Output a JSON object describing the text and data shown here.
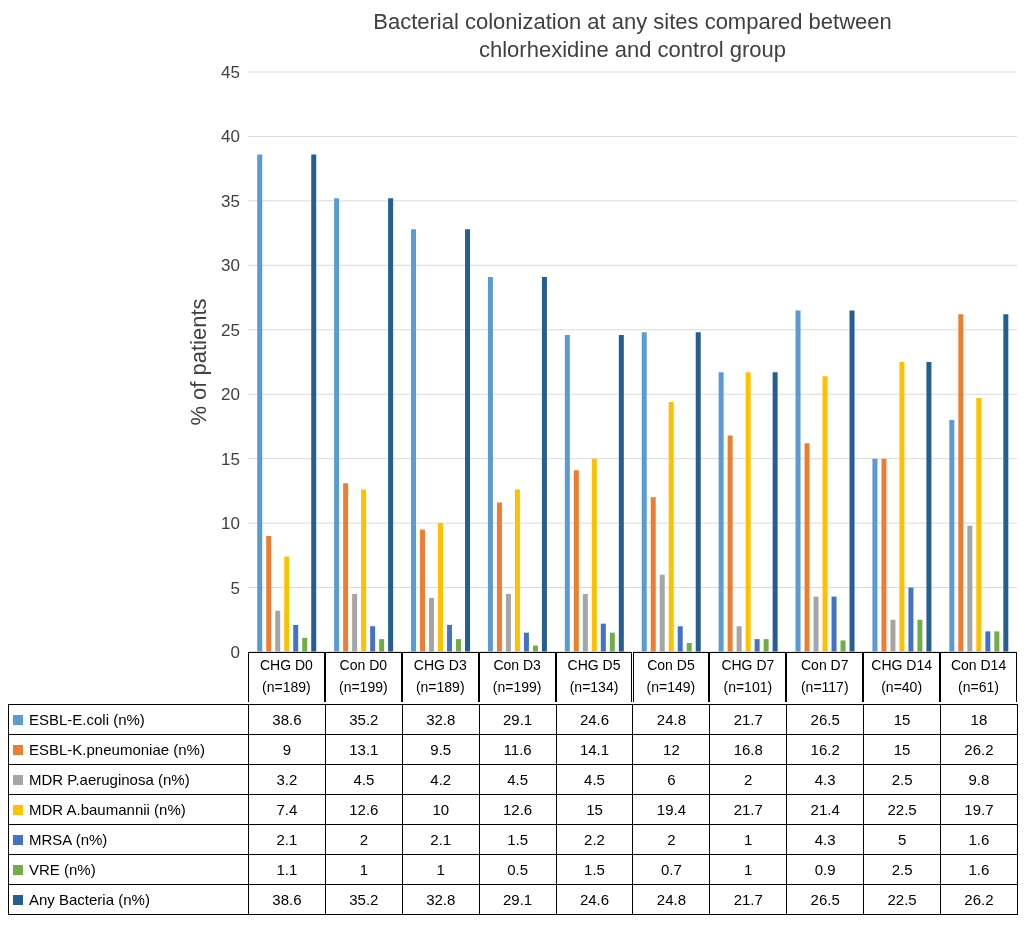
{
  "chart_data": {
    "type": "bar",
    "title": "Bacterial colonization at any sites compared between chlorhexidine and control group",
    "ylabel": "% of patients",
    "categories": [
      "CHG D0 (n=189)",
      "Con D0 (n=199)",
      "CHG D3 (n=189)",
      "Con D3 (n=199)",
      "CHG D5 (n=134)",
      "Con D5 (n=149)",
      "CHG D7 (n=101)",
      "Con D7 (n=117)",
      "CHG D14 (n=40)",
      "Con D14 (n=61)"
    ],
    "series": [
      {
        "name": "ESBL-E.coli (n%)",
        "color": "#5b9bd5",
        "values": [
          38.6,
          35.2,
          32.8,
          29.1,
          24.6,
          24.8,
          21.7,
          26.5,
          15,
          18
        ]
      },
      {
        "name": "ESBL-K.pneumoniae (n%)",
        "color": "#ed7d31",
        "values": [
          9,
          13.1,
          9.5,
          11.6,
          14.1,
          12,
          16.8,
          16.2,
          15,
          26.2
        ]
      },
      {
        "name": "MDR P.aeruginosa (n%)",
        "color": "#a5a5a5",
        "values": [
          3.2,
          4.5,
          4.2,
          4.5,
          4.5,
          6,
          2,
          4.3,
          2.5,
          9.8
        ]
      },
      {
        "name": "MDR A.baumannii (n%)",
        "color": "#ffc000",
        "values": [
          7.4,
          12.6,
          10,
          12.6,
          15,
          19.4,
          21.7,
          21.4,
          22.5,
          19.7
        ]
      },
      {
        "name": "MRSA (n%)",
        "color": "#4472c4",
        "values": [
          2.1,
          2,
          2.1,
          1.5,
          2.2,
          2,
          1,
          4.3,
          5,
          1.6
        ]
      },
      {
        "name": "VRE (n%)",
        "color": "#70ad47",
        "values": [
          1.1,
          1,
          1,
          0.5,
          1.5,
          0.7,
          1,
          0.9,
          2.5,
          1.6
        ]
      },
      {
        "name": "Any Bacteria (n%)",
        "color": "#255e91",
        "values": [
          38.6,
          35.2,
          32.8,
          29.1,
          24.6,
          24.8,
          21.7,
          26.5,
          22.5,
          26.2
        ]
      }
    ],
    "ylim": [
      0,
      45
    ],
    "yticks": [
      0,
      5,
      10,
      15,
      20,
      25,
      30,
      35,
      40,
      45
    ],
    "grid": "y",
    "legend": "bottom",
    "data_labels": true
  }
}
